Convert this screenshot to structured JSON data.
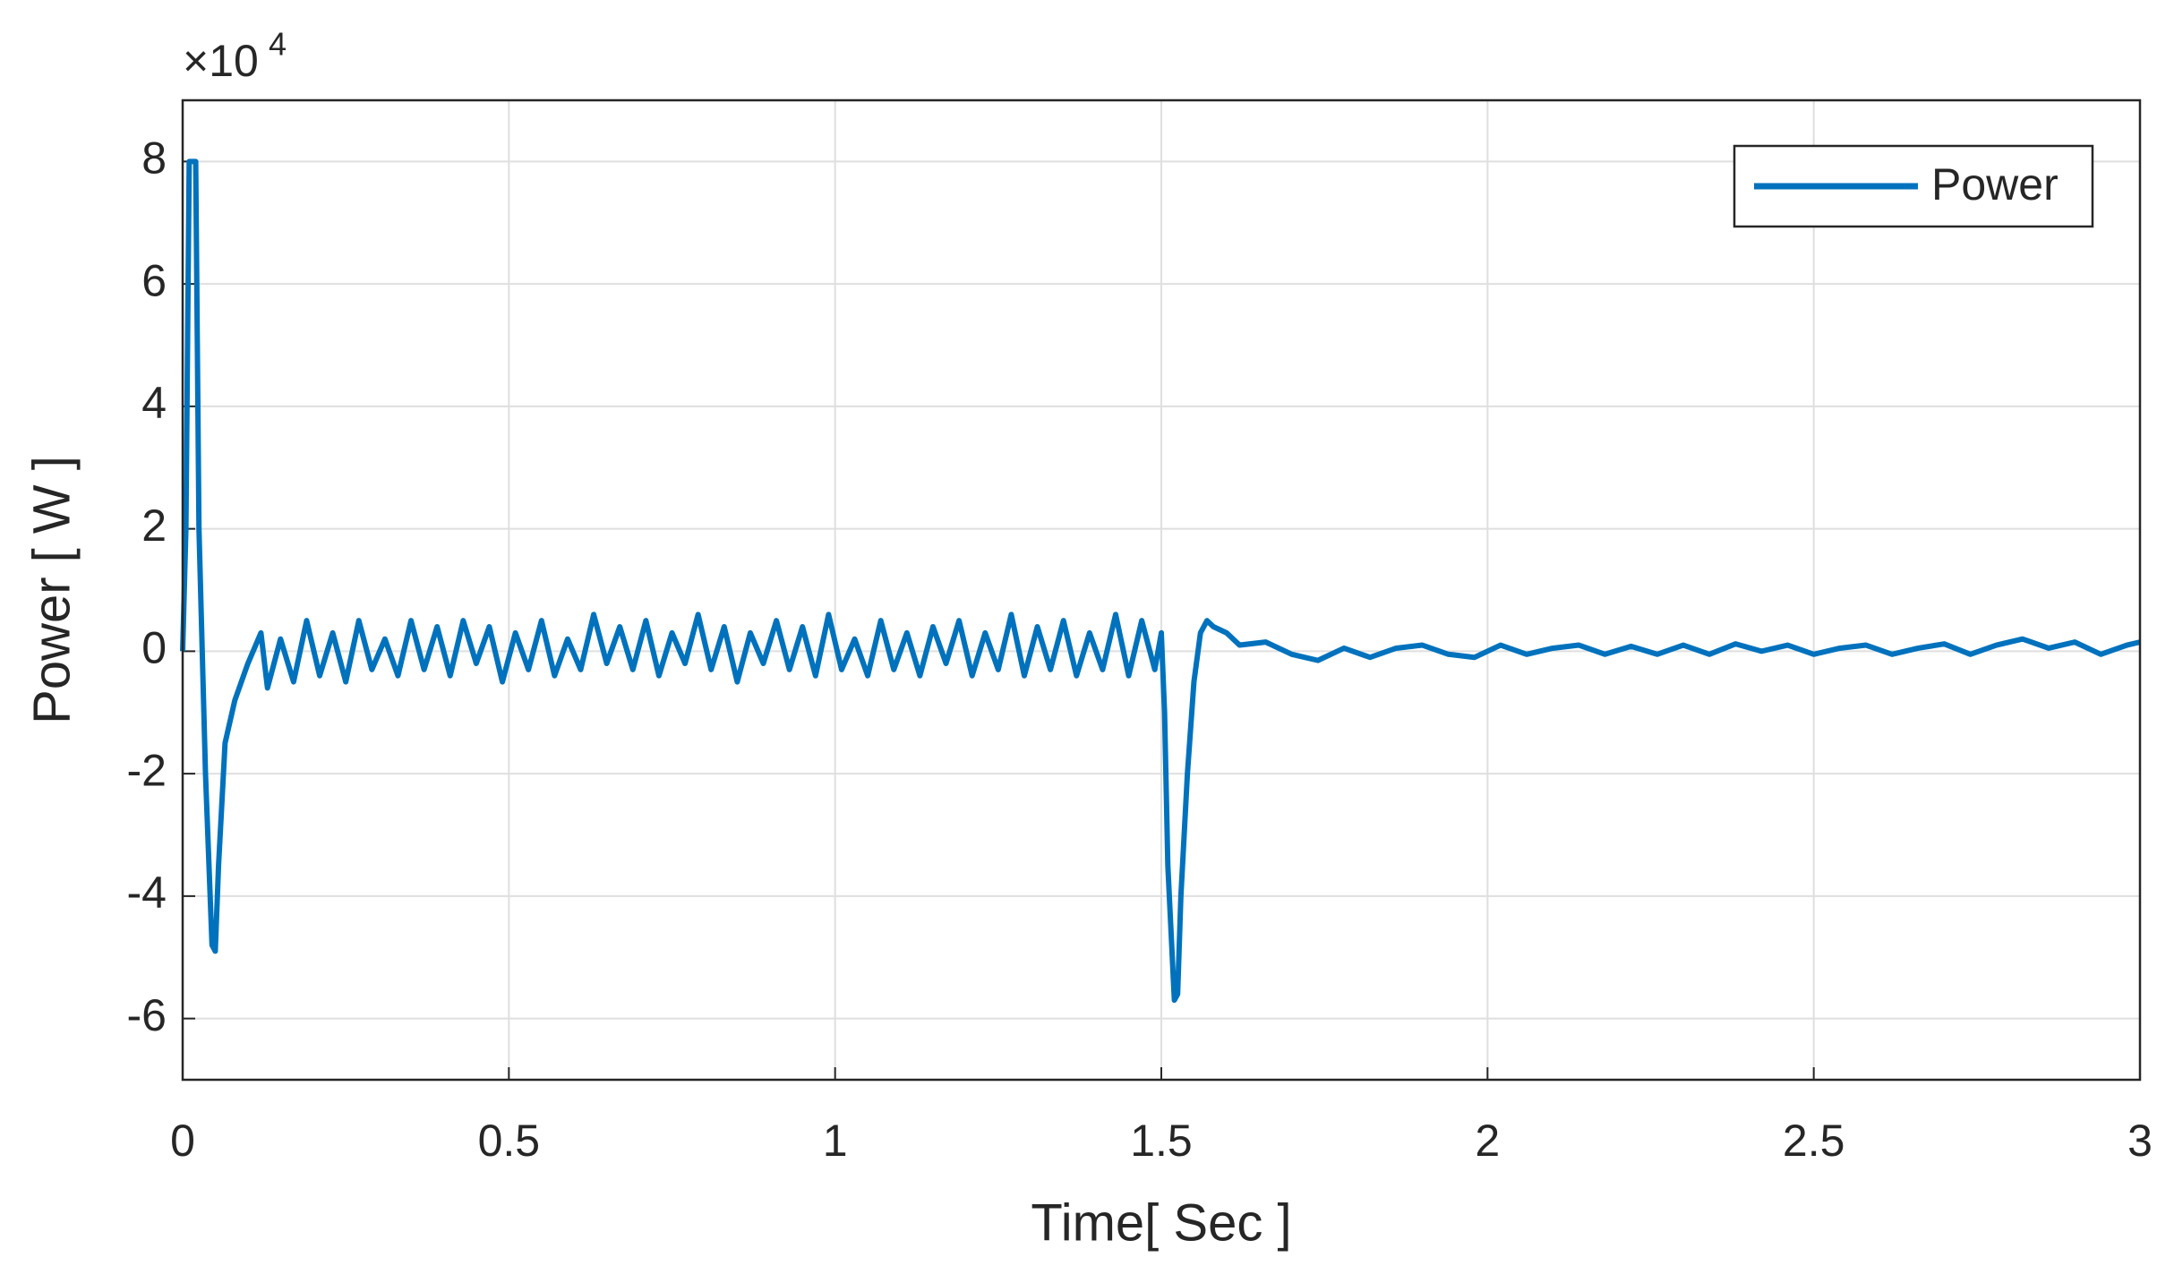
{
  "chart_data": {
    "type": "line",
    "xlabel": "Time[ Sec ]",
    "ylabel": "Power [ W ]",
    "y_multiplier": {
      "base": "×10",
      "exponent": "4"
    },
    "xlim": [
      0,
      3
    ],
    "xticks": [
      0,
      0.5,
      1,
      1.5,
      2,
      2.5,
      3
    ],
    "ylim": [
      -7,
      9
    ],
    "yticks": [
      -6,
      -4,
      -2,
      0,
      2,
      4,
      6,
      8
    ],
    "grid": true,
    "legend": "top-right",
    "x": [
      0,
      0.005,
      0.01,
      0.02,
      0.025,
      0.035,
      0.045,
      0.05,
      0.055,
      0.065,
      0.08,
      0.1,
      0.12,
      0.13,
      0.15,
      0.17,
      0.19,
      0.21,
      0.23,
      0.25,
      0.27,
      0.29,
      0.31,
      0.33,
      0.35,
      0.37,
      0.39,
      0.41,
      0.43,
      0.45,
      0.47,
      0.49,
      0.51,
      0.53,
      0.55,
      0.57,
      0.59,
      0.61,
      0.63,
      0.65,
      0.67,
      0.69,
      0.71,
      0.73,
      0.75,
      0.77,
      0.79,
      0.81,
      0.83,
      0.85,
      0.87,
      0.89,
      0.91,
      0.93,
      0.95,
      0.97,
      0.99,
      1.01,
      1.03,
      1.05,
      1.07,
      1.09,
      1.11,
      1.13,
      1.15,
      1.17,
      1.19,
      1.21,
      1.23,
      1.25,
      1.27,
      1.29,
      1.31,
      1.33,
      1.35,
      1.37,
      1.39,
      1.41,
      1.43,
      1.45,
      1.47,
      1.49,
      1.5,
      1.505,
      1.51,
      1.52,
      1.525,
      1.53,
      1.54,
      1.55,
      1.56,
      1.57,
      1.58,
      1.6,
      1.62,
      1.66,
      1.7,
      1.74,
      1.78,
      1.82,
      1.86,
      1.9,
      1.94,
      1.98,
      2.02,
      2.06,
      2.1,
      2.14,
      2.18,
      2.22,
      2.26,
      2.3,
      2.34,
      2.38,
      2.42,
      2.46,
      2.5,
      2.54,
      2.58,
      2.62,
      2.66,
      2.7,
      2.74,
      2.78,
      2.82,
      2.86,
      2.9,
      2.94,
      2.98,
      3
    ],
    "series": [
      {
        "name": "Power",
        "color": "#0072bd",
        "values": [
          0,
          2,
          8,
          8,
          2,
          -2,
          -4.8,
          -4.9,
          -3.5,
          -1.5,
          -0.8,
          -0.2,
          0.3,
          -0.6,
          0.2,
          -0.5,
          0.5,
          -0.4,
          0.3,
          -0.5,
          0.5,
          -0.3,
          0.2,
          -0.4,
          0.5,
          -0.3,
          0.4,
          -0.4,
          0.5,
          -0.2,
          0.4,
          -0.5,
          0.3,
          -0.3,
          0.5,
          -0.4,
          0.2,
          -0.3,
          0.6,
          -0.2,
          0.4,
          -0.3,
          0.5,
          -0.4,
          0.3,
          -0.2,
          0.6,
          -0.3,
          0.4,
          -0.5,
          0.3,
          -0.2,
          0.5,
          -0.3,
          0.4,
          -0.4,
          0.6,
          -0.3,
          0.2,
          -0.4,
          0.5,
          -0.3,
          0.3,
          -0.4,
          0.4,
          -0.2,
          0.5,
          -0.4,
          0.3,
          -0.3,
          0.6,
          -0.4,
          0.4,
          -0.3,
          0.5,
          -0.4,
          0.3,
          -0.3,
          0.6,
          -0.4,
          0.5,
          -0.3,
          0.3,
          -1,
          -3.5,
          -5.7,
          -5.6,
          -4,
          -2,
          -0.5,
          0.3,
          0.5,
          0.4,
          0.3,
          0.1,
          0.15,
          -0.05,
          -0.15,
          0.05,
          -0.1,
          0.05,
          0.1,
          -0.05,
          -0.1,
          0.1,
          -0.05,
          0.05,
          0.1,
          -0.05,
          0.08,
          -0.05,
          0.1,
          -0.05,
          0.12,
          0,
          0.1,
          -0.05,
          0.05,
          0.1,
          -0.05,
          0.05,
          0.12,
          -0.05,
          0.1,
          0.2,
          0.05,
          0.15,
          -0.05,
          0.1,
          0.15
        ]
      }
    ]
  }
}
